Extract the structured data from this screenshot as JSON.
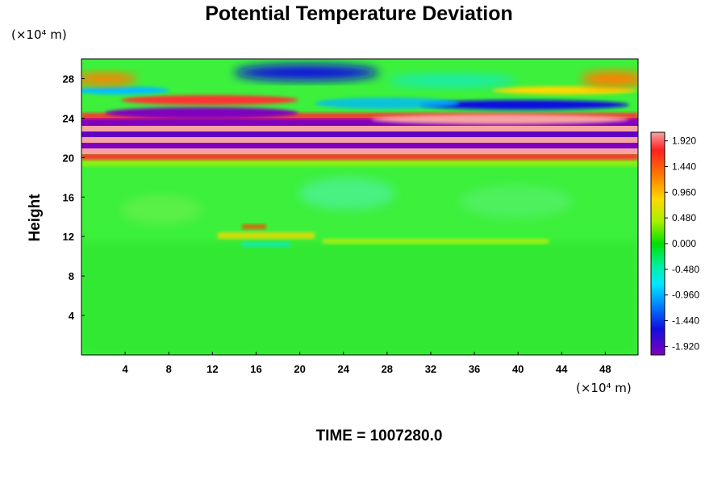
{
  "chart_data": {
    "type": "heatmap",
    "title": "Potential Temperature Deviation",
    "xlabel": "",
    "ylabel": "Height",
    "x_unit": "(×10⁴ m)",
    "y_unit": "(×10⁴ m)",
    "xlim": [
      0,
      51
    ],
    "ylim": [
      0,
      30
    ],
    "x_ticks": [
      4,
      8,
      12,
      16,
      20,
      24,
      28,
      32,
      36,
      40,
      44,
      48
    ],
    "y_ticks": [
      4,
      8,
      12,
      16,
      20,
      24,
      28
    ],
    "colorbar": {
      "range": [
        -2.08,
        2.08
      ],
      "tick_values": [
        1.92,
        1.44,
        0.96,
        0.48,
        0.0,
        -0.48,
        -0.96,
        -1.44,
        -1.92
      ],
      "tick_labels": [
        "1.920",
        "1.440",
        "0.960",
        "0.480",
        "0.000",
        "-0.480",
        "-0.960",
        "-1.440",
        "-1.920"
      ]
    },
    "field_description_bands": [
      {
        "y_range": [
          0,
          10
        ],
        "value_approx": 0.0
      },
      {
        "y_range": [
          11,
          13
        ],
        "value_approx": 0.3
      },
      {
        "y_range": [
          19.5,
          24.5
        ],
        "value_approx": 2.0,
        "alternating_with": -2.0
      },
      {
        "y_range": [
          25,
          30
        ],
        "value_approx": 1.0,
        "alternating_with": -1.0
      }
    ],
    "grid": false,
    "legend": "colorbar-right"
  },
  "footer": {
    "time_label": "TIME = 1007280.0"
  }
}
